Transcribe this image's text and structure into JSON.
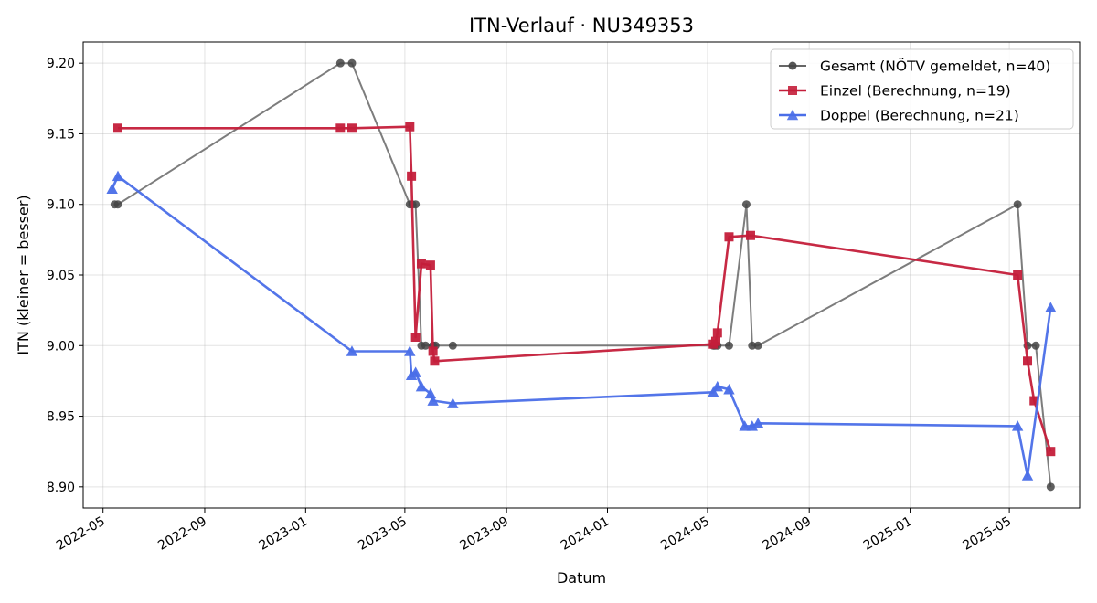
{
  "chart_data": {
    "type": "line",
    "title": "ITN-Verlauf · NU349353",
    "xlabel": "Datum",
    "ylabel": "ITN  (kleiner = besser)",
    "x_axis_type": "date",
    "xlim": [
      "2022-04-07",
      "2025-07-25"
    ],
    "ylim": [
      8.885,
      9.215
    ],
    "x_ticks": [
      "2022-05-01",
      "2022-09-01",
      "2023-01-01",
      "2023-05-01",
      "2023-09-01",
      "2024-01-01",
      "2024-05-01",
      "2024-09-01",
      "2025-01-01",
      "2025-05-01"
    ],
    "x_tick_labels": [
      "2022-05",
      "2022-09",
      "2023-01",
      "2023-05",
      "2023-09",
      "2024-01",
      "2024-05",
      "2024-09",
      "2025-01",
      "2025-05"
    ],
    "y_ticks": [
      8.9,
      8.95,
      9.0,
      9.05,
      9.1,
      9.15,
      9.2
    ],
    "y_tick_labels": [
      "8.90",
      "8.95",
      "9.00",
      "9.05",
      "9.10",
      "9.15",
      "9.20"
    ],
    "grid": true,
    "legend_position": "top-right",
    "series": [
      {
        "name": "Gesamt (NÖTV gemeldet, n=40)",
        "color": "#666666",
        "marker": "circle",
        "points": [
          [
            "2022-05-15",
            9.1
          ],
          [
            "2022-05-19",
            9.1
          ],
          [
            "2023-02-12",
            9.2
          ],
          [
            "2023-02-26",
            9.2
          ],
          [
            "2023-05-07",
            9.1
          ],
          [
            "2023-05-10",
            9.1
          ],
          [
            "2023-05-14",
            9.1
          ],
          [
            "2023-05-21",
            9.0
          ],
          [
            "2023-05-26",
            9.0
          ],
          [
            "2023-06-04",
            9.0
          ],
          [
            "2023-06-07",
            9.0
          ],
          [
            "2023-06-28",
            9.0
          ],
          [
            "2024-05-08",
            9.0
          ],
          [
            "2024-05-10",
            9.0
          ],
          [
            "2024-05-13",
            9.0
          ],
          [
            "2024-05-27",
            9.0
          ],
          [
            "2024-06-17",
            9.1
          ],
          [
            "2024-06-24",
            9.0
          ],
          [
            "2024-07-01",
            9.0
          ],
          [
            "2025-05-11",
            9.1
          ],
          [
            "2025-05-23",
            9.0
          ],
          [
            "2025-06-02",
            9.0
          ],
          [
            "2025-06-20",
            8.9
          ]
        ]
      },
      {
        "name": "Einzel (Berechnung, n=19)",
        "color": "#c41e3a",
        "marker": "square",
        "points": [
          [
            "2022-05-19",
            9.154
          ],
          [
            "2023-02-12",
            9.154
          ],
          [
            "2023-02-26",
            9.154
          ],
          [
            "2023-05-07",
            9.155
          ],
          [
            "2023-05-09",
            9.12
          ],
          [
            "2023-05-14",
            9.006
          ],
          [
            "2023-05-21",
            9.058
          ],
          [
            "2023-06-01",
            9.057
          ],
          [
            "2023-06-04",
            8.996
          ],
          [
            "2023-06-06",
            8.989
          ],
          [
            "2024-05-08",
            9.001
          ],
          [
            "2024-05-11",
            9.003
          ],
          [
            "2024-05-13",
            9.009
          ],
          [
            "2024-05-27",
            9.077
          ],
          [
            "2024-06-22",
            9.078
          ],
          [
            "2025-05-11",
            9.05
          ],
          [
            "2025-05-23",
            8.989
          ],
          [
            "2025-05-31",
            8.961
          ],
          [
            "2025-06-20",
            8.925
          ]
        ]
      },
      {
        "name": "Doppel (Berechnung, n=21)",
        "color": "#4a6ee8",
        "marker": "triangle",
        "points": [
          [
            "2022-05-12",
            9.111
          ],
          [
            "2022-05-19",
            9.12
          ],
          [
            "2023-02-26",
            8.996
          ],
          [
            "2023-05-07",
            8.996
          ],
          [
            "2023-05-09",
            8.979
          ],
          [
            "2023-05-14",
            8.981
          ],
          [
            "2023-05-21",
            8.971
          ],
          [
            "2023-06-01",
            8.966
          ],
          [
            "2023-06-04",
            8.961
          ],
          [
            "2023-06-28",
            8.959
          ],
          [
            "2024-05-08",
            8.967
          ],
          [
            "2024-05-13",
            8.971
          ],
          [
            "2024-05-27",
            8.969
          ],
          [
            "2024-06-15",
            8.943
          ],
          [
            "2024-06-24",
            8.943
          ],
          [
            "2024-07-01",
            8.945
          ],
          [
            "2025-05-11",
            8.943
          ],
          [
            "2025-05-23",
            8.908
          ],
          [
            "2025-06-20",
            9.027
          ]
        ]
      }
    ]
  }
}
